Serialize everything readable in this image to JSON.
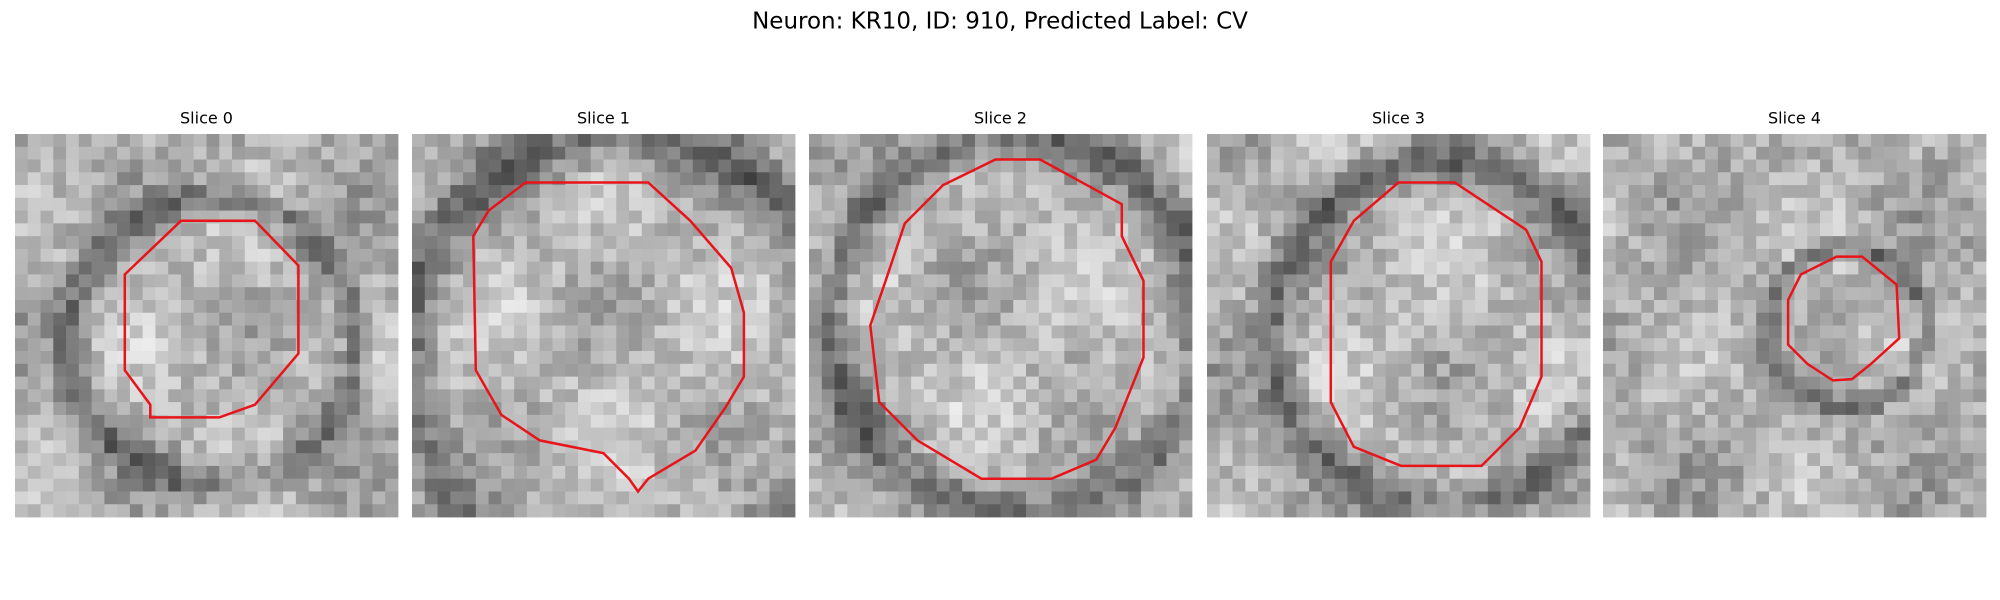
{
  "title": "Neuron: KR10, ID: 910, Predicted Label: CV",
  "panels": [
    {
      "title": "Slice 0"
    },
    {
      "title": "Slice 1"
    },
    {
      "title": "Slice 2"
    },
    {
      "title": "Slice 3"
    },
    {
      "title": "Slice 4"
    }
  ]
}
